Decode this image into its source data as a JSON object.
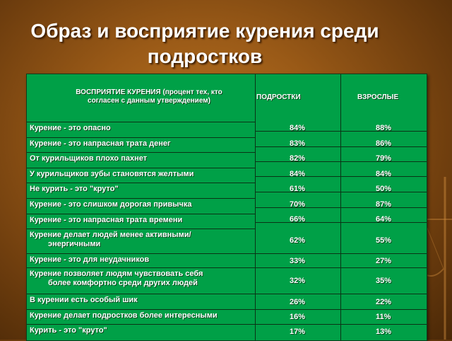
{
  "title_line1": "Образ и восприятие курения среди",
  "title_line2": "подростков",
  "header": {
    "main": "ВОСПРИЯТИЕ КУРЕНИЯ (процент тех, кто согласен с данным утверждением)",
    "teens": "ПОДРОСТКИ",
    "adults": "ВЗРОСЛЫЕ"
  },
  "rows": [
    {
      "label": "Курение - это опасно",
      "teens": "84%",
      "adults": "88%"
    },
    {
      "label": "Курение - это напрасная трата денег",
      "teens": "83%",
      "adults": "86%"
    },
    {
      "label": "От курильщиков плохо пахнет",
      "teens": "82%",
      "adults": "79%"
    },
    {
      "label": "У курильщиков зубы становятся желтыми",
      "teens": "84%",
      "adults": "84%"
    },
    {
      "label": "Не курить - это \"круто\"",
      "teens": "61%",
      "adults": "50%"
    },
    {
      "label": "Курение - это слишком дорогая привычка",
      "teens": "70%",
      "adults": "87%"
    },
    {
      "label": "Курение - это напрасная трата времени",
      "teens": "66%",
      "adults": "64%"
    },
    {
      "label": "Курение делает людей менее активными/",
      "label2": "энергичными",
      "teens": "62%",
      "adults": "55%"
    },
    {
      "label": "Курение - это для неудачников",
      "teens": "33%",
      "adults": "27%"
    },
    {
      "label": "Курение позволяет людям чувствовать себя",
      "label2": "более комфортно среди других людей",
      "teens": "32%",
      "adults": "35%"
    },
    {
      "label": "В курении есть особый шик",
      "teens": "26%",
      "adults": "22%"
    },
    {
      "label": "Курение делает подростков более интересными",
      "teens": "16%",
      "adults": "11%"
    },
    {
      "label": "Курить - это \"круто\"",
      "teens": "17%",
      "adults": "13%"
    }
  ]
}
